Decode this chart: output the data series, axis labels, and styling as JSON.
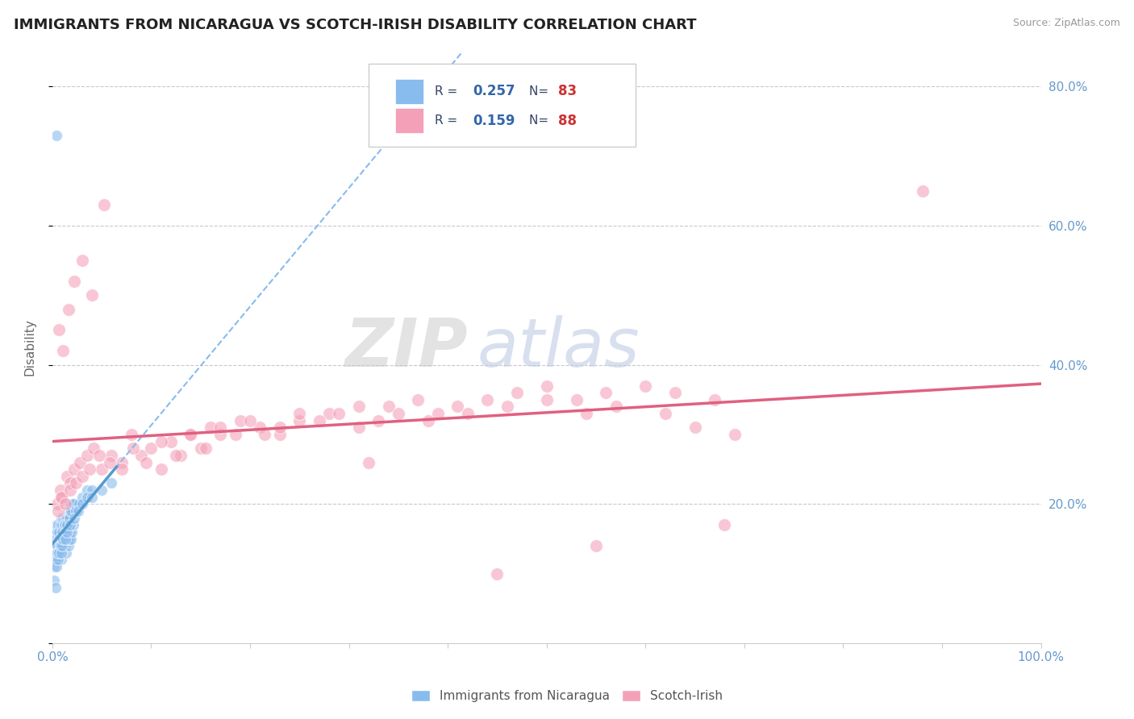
{
  "title": "IMMIGRANTS FROM NICARAGUA VS SCOTCH-IRISH DISABILITY CORRELATION CHART",
  "source_text": "Source: ZipAtlas.com",
  "ylabel": "Disability",
  "xlim": [
    0.0,
    1.0
  ],
  "ylim": [
    0.0,
    0.85
  ],
  "y_ticks": [
    0.0,
    0.2,
    0.4,
    0.6,
    0.8
  ],
  "y_tick_labels": [
    "",
    "20.0%",
    "40.0%",
    "60.0%",
    "80.0%"
  ],
  "grid_color": "#c8c8d4",
  "background_color": "#ffffff",
  "blue_color": "#88bbee",
  "pink_color": "#f4a0b8",
  "blue_line_color": "#5599cc",
  "pink_line_color": "#e06080",
  "blue_label": "Immigrants from Nicaragua",
  "pink_label": "Scotch-Irish",
  "R_blue": "0.257",
  "N_blue": "83",
  "R_pink": "0.159",
  "N_pink": "88",
  "watermark": "ZIPatlas",
  "title_fontsize": 13,
  "label_fontsize": 11,
  "tick_color": "#6699cc",
  "legend_text_color": "#334466",
  "legend_val_color": "#3366aa",
  "legend_n_color": "#cc3333",
  "blue_scatter_x": [
    0.002,
    0.003,
    0.004,
    0.005,
    0.006,
    0.007,
    0.008,
    0.009,
    0.01,
    0.011,
    0.012,
    0.013,
    0.014,
    0.015,
    0.016,
    0.017,
    0.018,
    0.019,
    0.02,
    0.021,
    0.002,
    0.003,
    0.004,
    0.005,
    0.006,
    0.007,
    0.008,
    0.009,
    0.01,
    0.011,
    0.012,
    0.013,
    0.014,
    0.015,
    0.016,
    0.017,
    0.018,
    0.019,
    0.02,
    0.022,
    0.002,
    0.003,
    0.004,
    0.005,
    0.006,
    0.007,
    0.008,
    0.009,
    0.01,
    0.012,
    0.013,
    0.015,
    0.017,
    0.019,
    0.021,
    0.024,
    0.027,
    0.03,
    0.035,
    0.04,
    0.002,
    0.003,
    0.004,
    0.005,
    0.006,
    0.007,
    0.008,
    0.009,
    0.01,
    0.011,
    0.013,
    0.015,
    0.018,
    0.022,
    0.026,
    0.03,
    0.035,
    0.04,
    0.05,
    0.06,
    0.002,
    0.003,
    0.004
  ],
  "blue_scatter_y": [
    0.14,
    0.13,
    0.14,
    0.12,
    0.13,
    0.14,
    0.13,
    0.12,
    0.14,
    0.15,
    0.14,
    0.15,
    0.13,
    0.15,
    0.14,
    0.15,
    0.16,
    0.15,
    0.16,
    0.17,
    0.16,
    0.15,
    0.17,
    0.16,
    0.17,
    0.16,
    0.17,
    0.18,
    0.17,
    0.18,
    0.17,
    0.18,
    0.17,
    0.18,
    0.19,
    0.18,
    0.19,
    0.2,
    0.19,
    0.2,
    0.13,
    0.12,
    0.13,
    0.14,
    0.13,
    0.15,
    0.14,
    0.15,
    0.16,
    0.17,
    0.16,
    0.17,
    0.18,
    0.19,
    0.2,
    0.19,
    0.2,
    0.21,
    0.22,
    0.22,
    0.11,
    0.12,
    0.11,
    0.13,
    0.12,
    0.13,
    0.14,
    0.13,
    0.14,
    0.15,
    0.15,
    0.16,
    0.17,
    0.18,
    0.19,
    0.2,
    0.21,
    0.21,
    0.22,
    0.23,
    0.09,
    0.08,
    0.73
  ],
  "pink_scatter_x": [
    0.005,
    0.008,
    0.01,
    0.015,
    0.018,
    0.022,
    0.028,
    0.035,
    0.042,
    0.05,
    0.06,
    0.07,
    0.08,
    0.09,
    0.1,
    0.11,
    0.12,
    0.13,
    0.14,
    0.15,
    0.16,
    0.17,
    0.19,
    0.21,
    0.23,
    0.25,
    0.28,
    0.31,
    0.34,
    0.38,
    0.42,
    0.46,
    0.5,
    0.54,
    0.57,
    0.62,
    0.65,
    0.69,
    0.006,
    0.009,
    0.013,
    0.018,
    0.024,
    0.03,
    0.038,
    0.047,
    0.058,
    0.07,
    0.082,
    0.095,
    0.11,
    0.125,
    0.14,
    0.155,
    0.17,
    0.185,
    0.2,
    0.215,
    0.23,
    0.25,
    0.27,
    0.29,
    0.31,
    0.33,
    0.35,
    0.37,
    0.39,
    0.41,
    0.44,
    0.47,
    0.5,
    0.53,
    0.56,
    0.6,
    0.63,
    0.67,
    0.007,
    0.011,
    0.016,
    0.022,
    0.03,
    0.04,
    0.052,
    0.32,
    0.45,
    0.55,
    0.68,
    0.88
  ],
  "pink_scatter_y": [
    0.2,
    0.22,
    0.21,
    0.24,
    0.23,
    0.25,
    0.26,
    0.27,
    0.28,
    0.25,
    0.27,
    0.26,
    0.3,
    0.27,
    0.28,
    0.25,
    0.29,
    0.27,
    0.3,
    0.28,
    0.31,
    0.3,
    0.32,
    0.31,
    0.3,
    0.32,
    0.33,
    0.31,
    0.34,
    0.32,
    0.33,
    0.34,
    0.35,
    0.33,
    0.34,
    0.33,
    0.31,
    0.3,
    0.19,
    0.21,
    0.2,
    0.22,
    0.23,
    0.24,
    0.25,
    0.27,
    0.26,
    0.25,
    0.28,
    0.26,
    0.29,
    0.27,
    0.3,
    0.28,
    0.31,
    0.3,
    0.32,
    0.3,
    0.31,
    0.33,
    0.32,
    0.33,
    0.34,
    0.32,
    0.33,
    0.35,
    0.33,
    0.34,
    0.35,
    0.36,
    0.37,
    0.35,
    0.36,
    0.37,
    0.36,
    0.35,
    0.45,
    0.42,
    0.48,
    0.52,
    0.55,
    0.5,
    0.63,
    0.26,
    0.1,
    0.14,
    0.17,
    0.65
  ]
}
